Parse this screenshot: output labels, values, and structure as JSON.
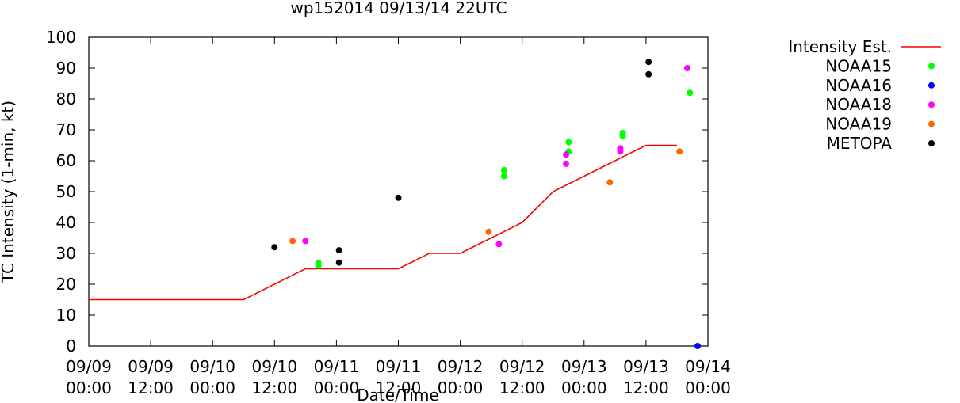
{
  "chart_data": {
    "type": "scatter",
    "title": "wp152014 09/13/14 22UTC",
    "xlabel": "Date/Time",
    "ylabel": "TC Intensity (1-min, kt)",
    "ylim": [
      0,
      100
    ],
    "yticks": [
      0,
      10,
      20,
      30,
      40,
      50,
      60,
      70,
      80,
      90,
      100
    ],
    "xlim": [
      "2014-09-09 00:00",
      "2014-09-14 00:00"
    ],
    "xticks": [
      {
        "x": "2014-09-09 00:00",
        "line1": "09/09",
        "line2": "00:00"
      },
      {
        "x": "2014-09-09 12:00",
        "line1": "09/09",
        "line2": "12:00"
      },
      {
        "x": "2014-09-10 00:00",
        "line1": "09/10",
        "line2": "00:00"
      },
      {
        "x": "2014-09-10 12:00",
        "line1": "09/10",
        "line2": "12:00"
      },
      {
        "x": "2014-09-11 00:00",
        "line1": "09/11",
        "line2": "00:00"
      },
      {
        "x": "2014-09-11 12:00",
        "line1": "09/11",
        "line2": "12:00"
      },
      {
        "x": "2014-09-12 00:00",
        "line1": "09/12",
        "line2": "00:00"
      },
      {
        "x": "2014-09-12 12:00",
        "line1": "09/12",
        "line2": "12:00"
      },
      {
        "x": "2014-09-13 00:00",
        "line1": "09/13",
        "line2": "00:00"
      },
      {
        "x": "2014-09-13 12:00",
        "line1": "09/13",
        "line2": "12:00"
      },
      {
        "x": "2014-09-14 00:00",
        "line1": "09/14",
        "line2": "00:00"
      }
    ],
    "legend_position": "right",
    "series": [
      {
        "name": "Intensity Est.",
        "kind": "line",
        "color": "#ff0000",
        "points": [
          [
            "2014-09-09 00:00",
            15
          ],
          [
            "2014-09-10 06:00",
            15
          ],
          [
            "2014-09-10 18:00",
            25
          ],
          [
            "2014-09-11 12:00",
            25
          ],
          [
            "2014-09-11 18:00",
            30
          ],
          [
            "2014-09-12 00:00",
            30
          ],
          [
            "2014-09-12 12:00",
            40
          ],
          [
            "2014-09-12 18:00",
            50
          ],
          [
            "2014-09-13 12:00",
            65
          ],
          [
            "2014-09-13 18:00",
            65
          ]
        ]
      },
      {
        "name": "NOAA15",
        "kind": "points",
        "color": "#00ff00",
        "points": [
          [
            "2014-09-10 20:30",
            27
          ],
          [
            "2014-09-10 20:30",
            26
          ],
          [
            "2014-09-12 08:30",
            57
          ],
          [
            "2014-09-12 08:30",
            55
          ],
          [
            "2014-09-12 21:00",
            66
          ],
          [
            "2014-09-12 21:00",
            63
          ],
          [
            "2014-09-13 07:30",
            69
          ],
          [
            "2014-09-13 07:30",
            68
          ],
          [
            "2014-09-13 20:30",
            82
          ]
        ]
      },
      {
        "name": "NOAA16",
        "kind": "points",
        "color": "#0000ff",
        "points": [
          [
            "2014-09-13 22:00",
            0
          ]
        ]
      },
      {
        "name": "NOAA18",
        "kind": "points",
        "color": "#ff00ff",
        "points": [
          [
            "2014-09-10 18:00",
            34
          ],
          [
            "2014-09-12 07:30",
            33
          ],
          [
            "2014-09-12 20:30",
            62
          ],
          [
            "2014-09-12 20:30",
            59
          ],
          [
            "2014-09-13 07:00",
            64
          ],
          [
            "2014-09-13 07:00",
            63
          ],
          [
            "2014-09-13 20:00",
            90
          ]
        ]
      },
      {
        "name": "NOAA19",
        "kind": "points",
        "color": "#ff6600",
        "points": [
          [
            "2014-09-10 15:30",
            34
          ],
          [
            "2014-09-12 05:30",
            37
          ],
          [
            "2014-09-13 05:00",
            53
          ],
          [
            "2014-09-13 18:30",
            63
          ]
        ]
      },
      {
        "name": "METOPA",
        "kind": "points",
        "color": "#000000",
        "points": [
          [
            "2014-09-10 12:00",
            32
          ],
          [
            "2014-09-11 00:30",
            31
          ],
          [
            "2014-09-11 00:30",
            27
          ],
          [
            "2014-09-11 12:00",
            48
          ],
          [
            "2014-09-13 12:30",
            92
          ],
          [
            "2014-09-13 12:30",
            88
          ]
        ]
      }
    ]
  }
}
